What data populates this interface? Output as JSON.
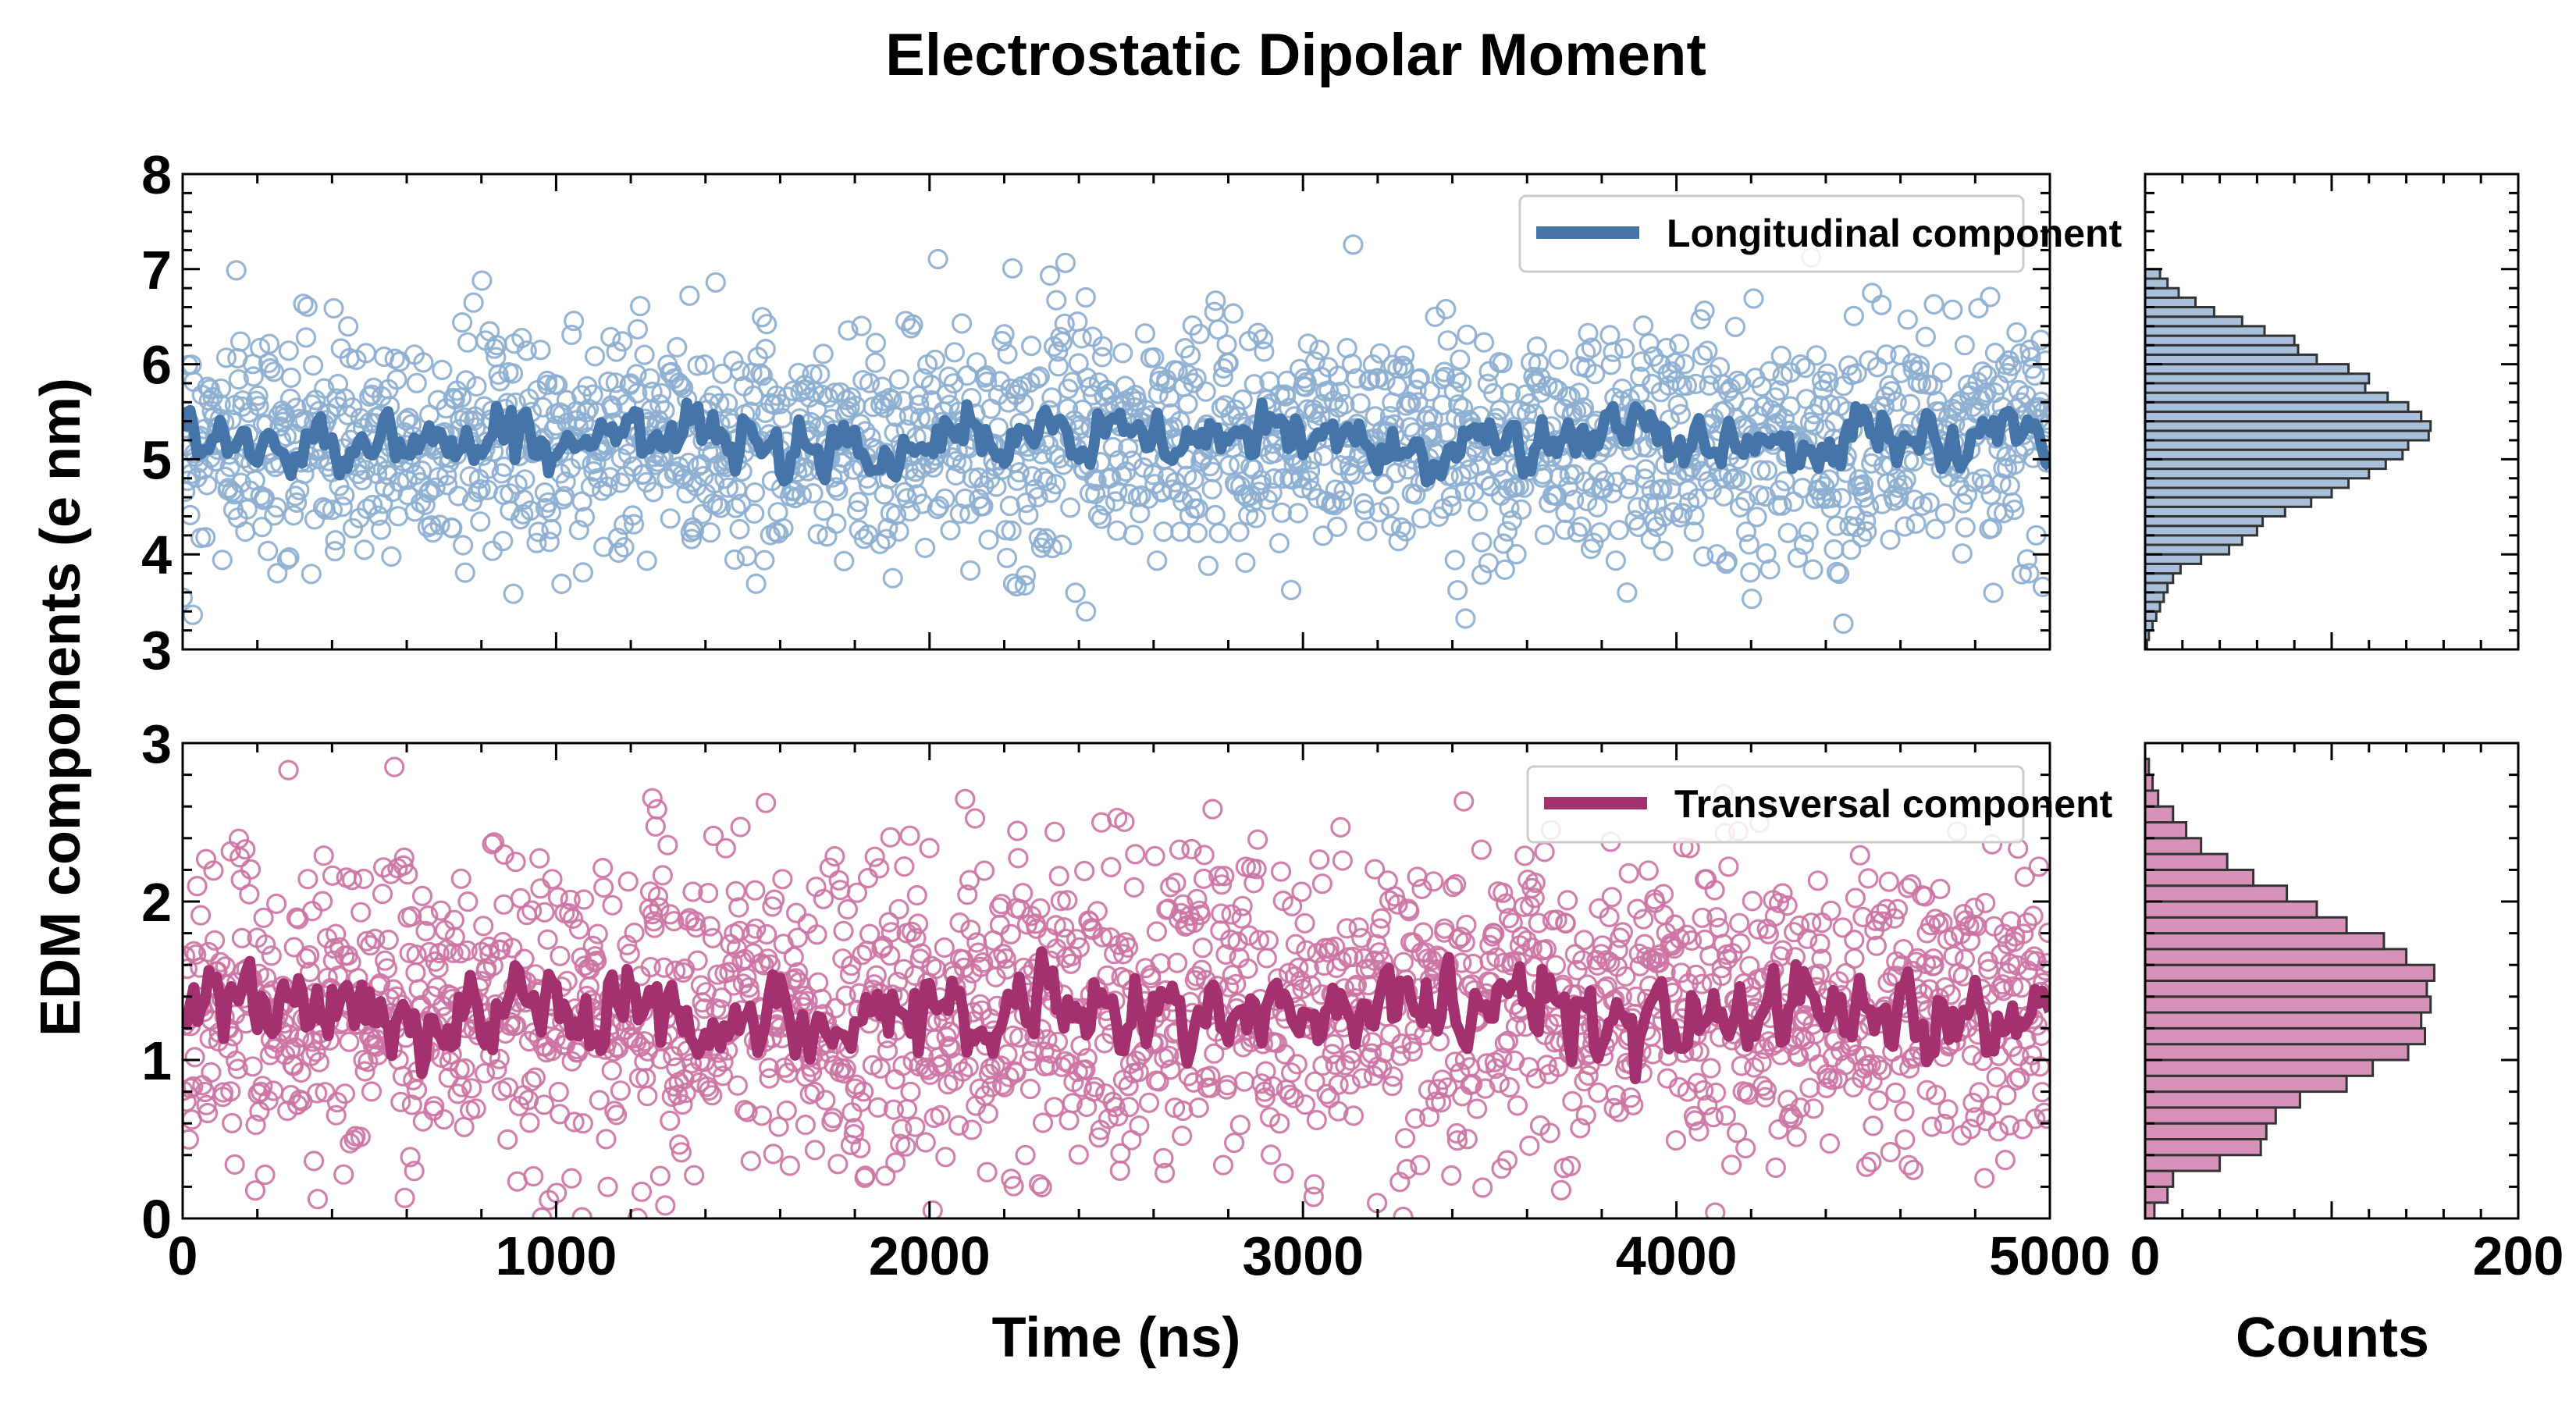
{
  "chart_data": {
    "type": "scatter",
    "title": "Electrostatic Dipolar Moment",
    "ylabel": "EDM components (e nm)",
    "colors": {
      "longitudinal_line": "#4575a8",
      "longitudinal_marker": "#8caed0",
      "longitudinal_hist": "#a9c0da",
      "transversal_line": "#a3306f",
      "transversal_marker": "#cc73a3",
      "transversal_hist": "#d692b8",
      "axes": "#000000"
    },
    "panels": [
      {
        "name": "longitudinal",
        "legend": "Longitudinal component",
        "legend_position": "top-right",
        "xlim": [
          0,
          5000
        ],
        "ylim": [
          3,
          8
        ],
        "yticks": [
          3,
          4,
          5,
          6,
          7,
          8
        ],
        "show_xticklabels": false,
        "scatter_model": {
          "n_points": 1900,
          "mean": 5.2,
          "sd": 0.6
        },
        "running_mean_model": {
          "mean": 5.2,
          "range": [
            4.6,
            5.9
          ]
        },
        "histogram": {
          "bins": [
            3.0,
            3.1,
            3.2,
            3.3,
            3.4,
            3.5,
            3.6,
            3.7,
            3.8,
            3.9,
            4.0,
            4.1,
            4.2,
            4.3,
            4.4,
            4.5,
            4.6,
            4.7,
            4.8,
            4.9,
            5.0,
            5.1,
            5.2,
            5.3,
            5.4,
            5.5,
            5.6,
            5.7,
            5.8,
            5.9,
            6.0,
            6.1,
            6.2,
            6.3,
            6.4,
            6.5,
            6.6,
            6.7,
            6.8,
            6.9
          ],
          "counts": [
            1,
            2,
            4,
            6,
            8,
            10,
            12,
            15,
            19,
            30,
            45,
            52,
            60,
            63,
            75,
            89,
            100,
            109,
            120,
            129,
            138,
            141,
            152,
            153,
            148,
            141,
            130,
            118,
            120,
            109,
            92,
            82,
            80,
            64,
            52,
            37,
            27,
            18,
            12,
            8
          ]
        }
      },
      {
        "name": "transversal",
        "legend": "Transversal component",
        "legend_position": "top-right",
        "xlim": [
          0,
          5000
        ],
        "ylim": [
          0,
          3
        ],
        "yticks": [
          0,
          1,
          2,
          3
        ],
        "xticks": [
          0,
          1000,
          2000,
          3000,
          4000,
          5000
        ],
        "xlabel": "Time (ns)",
        "show_xticklabels": true,
        "scatter_model": {
          "n_points": 1900,
          "mean": 1.3,
          "sd": 0.5
        },
        "running_mean_model": {
          "mean": 1.3,
          "range": [
            0.75,
            1.9
          ]
        },
        "histogram": {
          "bins": [
            0.0,
            0.1,
            0.2,
            0.3,
            0.4,
            0.5,
            0.6,
            0.7,
            0.8,
            0.9,
            1.0,
            1.1,
            1.2,
            1.3,
            1.4,
            1.5,
            1.6,
            1.7,
            1.8,
            1.9,
            2.0,
            2.1,
            2.2,
            2.3,
            2.4,
            2.5,
            2.6,
            2.7,
            2.8
          ],
          "counts": [
            5,
            12,
            15,
            40,
            62,
            65,
            70,
            83,
            108,
            122,
            141,
            150,
            148,
            153,
            151,
            155,
            140,
            128,
            108,
            92,
            76,
            58,
            44,
            30,
            22,
            15,
            7,
            4,
            2
          ]
        }
      }
    ],
    "histogram_axis": {
      "xlabel": "Counts",
      "xlim": [
        0,
        200
      ],
      "xticks": [
        0,
        200
      ]
    }
  }
}
